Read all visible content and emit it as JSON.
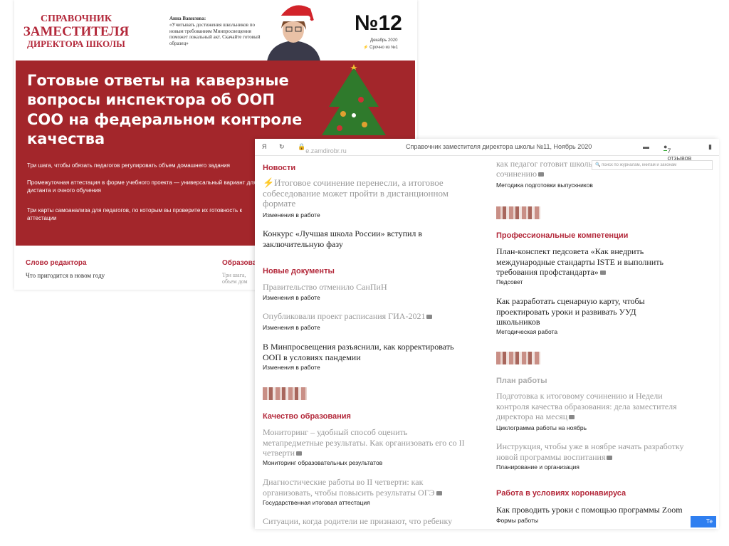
{
  "back": {
    "logo": [
      "СПРАВОЧНИК",
      "ЗАМЕСТИТЕЛЯ",
      "ДИРЕКТОРА ШКОЛЫ"
    ],
    "quote_author": "Анна Вавилова:",
    "quote_text": "«Учитывать достижения школьников по новым требованиям Минпросвещения поможет локальный акт. Скачайте готовый образец»",
    "issue": "№12",
    "issue_date": "Декабрь 2020",
    "issue_link": "Срочно из №1",
    "banner_title": "Готовые ответы на каверзные вопросы инспектора об ООП СОО на федеральном контроле качества",
    "banner_items": [
      "Три шага, чтобы обязать педагогов регулировать объем домашнего задания",
      "Промежуточная аттестация в форме учебного проекта — универсальный вариант для дистанта и очного обучения",
      "Три карты самоанализа для педагогов, по которым вы проверите их готовность к аттестации"
    ],
    "editor_heading": "Слово редактора",
    "editor_text": "Что пригодится в новом году",
    "edu_heading": "Образоват",
    "edu_text": "Три шага, объем дом"
  },
  "browser": {
    "logo": "Я",
    "reload": "↻",
    "url": "e.zamdirobr.ru",
    "title": "Справочник заместителя директора школы №11, Ноябрь 2020",
    "reviews": "7 отзывов",
    "search_placeholder": "поиск по журналам, книгам и законам",
    "chat_label": "Те"
  },
  "left": {
    "news_heading": "Новости",
    "news1": "⚡Итоговое сочинение перенесли, а итоговое собеседование может пройти в дистанционном формате",
    "news1_tag": "Изменения в работе",
    "news2": "Конкурс «Лучшая школа России» вступил в заключительную фазу",
    "docs_heading": "Новые документы",
    "doc1": "Правительство отменило СанПиН",
    "doc1_tag": "Изменения в работе",
    "doc2": "Опубликовали проект расписания ГИА-2021",
    "doc2_tag": "Изменения в работе",
    "doc3": "В Минпросвещения разъяснили, как корректировать ООП в условиях пандемии",
    "doc3_tag": "Изменения в работе",
    "quality_heading": "Качество образования",
    "q1": "Мониторинг – удобный способ оценить метапредметные результаты. Как организовать его со II четверти",
    "q1_tag": "Мониторинг образовательных результатов",
    "q2": "Диагностические работы во II четверти: как организовать, чтобы повысить результаты ОГЭ",
    "q2_tag": "Государственная итоговая аттестация",
    "q3": "Ситуации, когда родители не признают, что ребенку"
  },
  "right": {
    "top1": "как педагог готовит школь",
    "top2": "сочинению",
    "top_tag": "Методика подготовки выпускников",
    "prof_heading": "Профессиональные компетенции",
    "p1": "План-конспект педсовета «Как внедрить международные стандарты ISTE и выполнить требования профстандарта»",
    "p1_tag": "Педсовет",
    "p2": "Как разработать сценарную карту, чтобы проектировать уроки и развивать УУД школьников",
    "p2_tag": "Методическая работа",
    "plan_heading": "План работы",
    "pl1": "Подготовка к итоговому сочинению и Недели контроля качества образования: дела заместителя директора на месяц",
    "pl1_tag": "Циклограмма работы на ноябрь",
    "pl2": "Инструкция, чтобы уже в ноябре начать разработку новой программы воспитания",
    "pl2_tag": "Планирование и организация",
    "covid_heading": "Работа в условиях коронавируса",
    "c1": "Как проводить уроки с помощью программы Zoom",
    "c1_tag": "Формы работы"
  }
}
